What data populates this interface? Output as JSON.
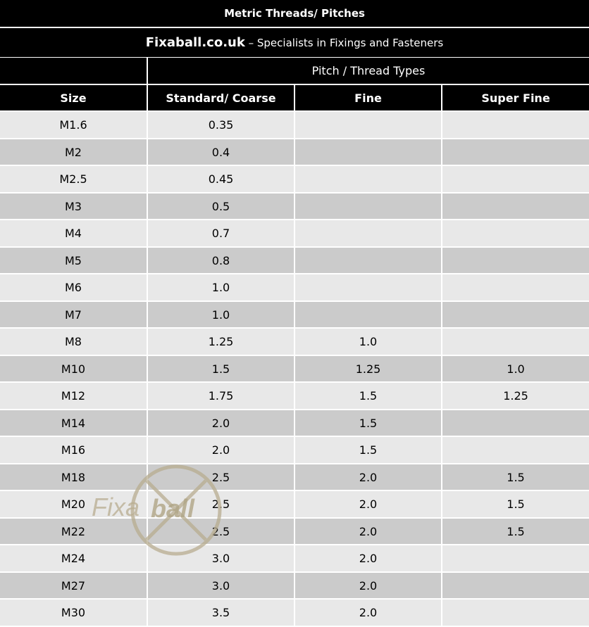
{
  "title": "Metric Threads/ Pitches",
  "subtitle": {
    "brand": "Fixaball.co.uk",
    "tagline": " – Specialists in Fixings and Fasteners"
  },
  "group_header": "Pitch / Thread Types",
  "columns": [
    "Size",
    "Standard/ Coarse",
    "Fine",
    "Super Fine"
  ],
  "rows": [
    [
      "M1.6",
      "0.35",
      "",
      ""
    ],
    [
      "M2",
      "0.4",
      "",
      ""
    ],
    [
      "M2.5",
      "0.45",
      "",
      ""
    ],
    [
      "M3",
      "0.5",
      "",
      ""
    ],
    [
      "M4",
      "0.7",
      "",
      ""
    ],
    [
      "M5",
      "0.8",
      "",
      ""
    ],
    [
      "M6",
      "1.0",
      "",
      ""
    ],
    [
      "M7",
      "1.0",
      "",
      ""
    ],
    [
      "M8",
      "1.25",
      "1.0",
      ""
    ],
    [
      "M10",
      "1.5",
      "1.25",
      "1.0"
    ],
    [
      "M12",
      "1.75",
      "1.5",
      "1.25"
    ],
    [
      "M14",
      "2.0",
      "1.5",
      ""
    ],
    [
      "M16",
      "2.0",
      "1.5",
      ""
    ],
    [
      "M18",
      "2.5",
      "2.0",
      "1.5"
    ],
    [
      "M20",
      "2.5",
      "2.0",
      "1.5"
    ],
    [
      "M22",
      "2.5",
      "2.0",
      "1.5"
    ],
    [
      "M24",
      "3.0",
      "2.0",
      ""
    ],
    [
      "M27",
      "3.0",
      "2.0",
      ""
    ],
    [
      "M30",
      "3.5",
      "2.0",
      ""
    ]
  ],
  "watermark": {
    "text_left": "Fixa",
    "text_right": "ball"
  },
  "colors": {
    "header_bg": "#000000",
    "row_light": "#e8e8e8",
    "row_dark": "#cbcbcb",
    "watermark": "#b8ad90"
  }
}
